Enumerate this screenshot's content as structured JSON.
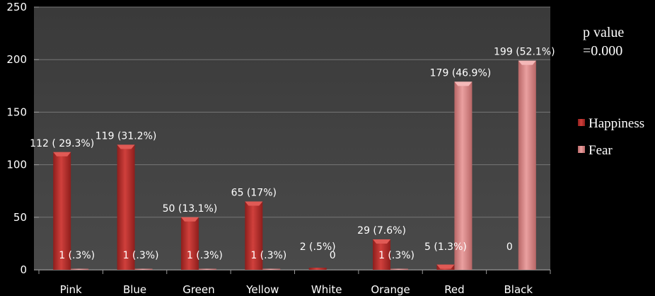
{
  "chart_data": {
    "type": "bar",
    "title": "",
    "xlabel": "",
    "ylabel": "",
    "ylim": [
      0,
      250
    ],
    "yticks": [
      0,
      50,
      100,
      150,
      200,
      250
    ],
    "grid": true,
    "legend_placement": "right",
    "categories": [
      "Pink",
      "Blue",
      "Green",
      "Yellow",
      "White",
      "Orange",
      "Red",
      "Black"
    ],
    "series": [
      {
        "name": "Happiness",
        "color": "#c0302e",
        "values": [
          112,
          119,
          50,
          65,
          2,
          29,
          5,
          0
        ],
        "labels": [
          "112 ( 29.3%)",
          "119 (31.2%)",
          "50 (13.1%)",
          "65 (17%)",
          "2 (.5%)",
          "29 (7.6%)",
          "5 (1.3%)",
          "0"
        ]
      },
      {
        "name": "Fear",
        "color": "#e08c8c",
        "values": [
          1,
          1,
          1,
          1,
          0,
          1,
          179,
          199
        ],
        "labels": [
          "1 (.3%)",
          "1 (.3%)",
          "1 (.3%)",
          "1 (.3%)",
          "0",
          "1 (.3%)",
          "179 (46.9%)",
          "199 (52.1%)"
        ]
      }
    ],
    "annotation": [
      "p value",
      "=0.000"
    ]
  }
}
